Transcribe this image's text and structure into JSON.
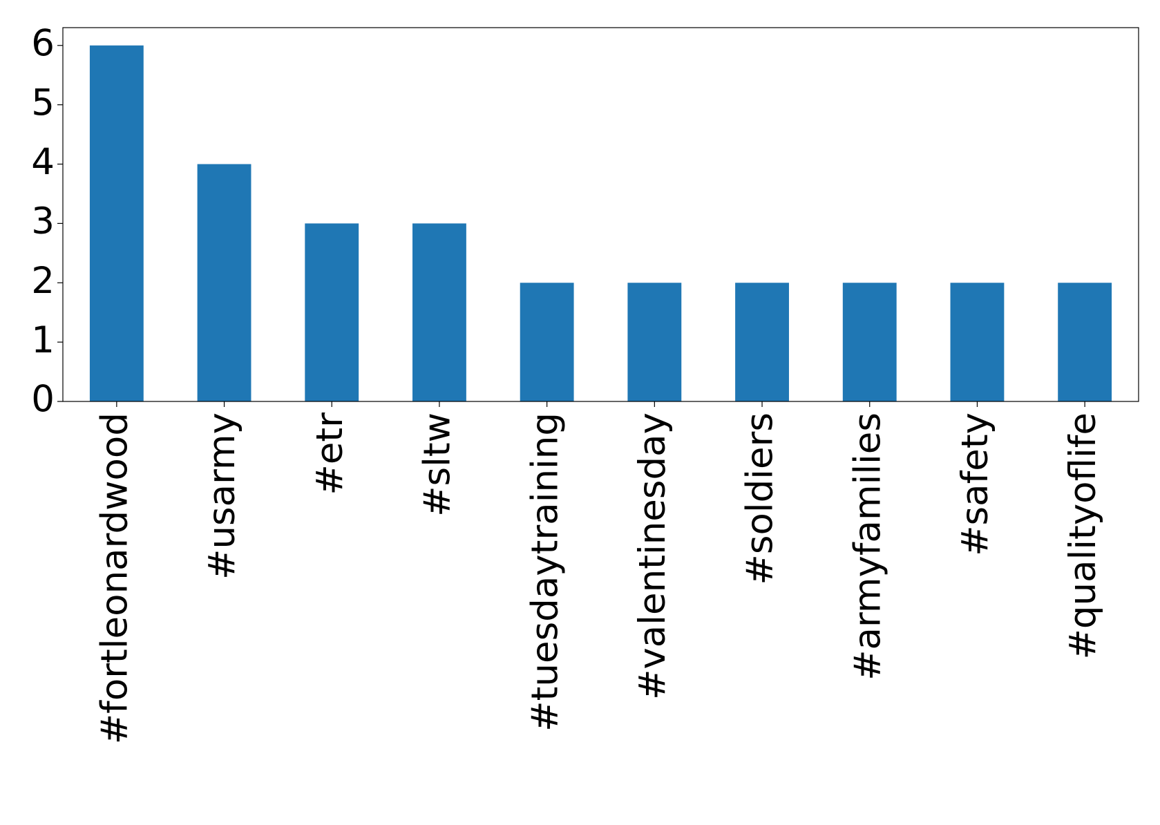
{
  "chart_data": {
    "type": "bar",
    "categories": [
      "#fortleonardwood",
      "#usarmy",
      "#etr",
      "#sltw",
      "#tuesdaytraining",
      "#valentinesday",
      "#soldiers",
      "#armyfamilies",
      "#safety",
      "#qualityoflife"
    ],
    "values": [
      6,
      4,
      3,
      3,
      2,
      2,
      2,
      2,
      2,
      2
    ],
    "color": "#1f77b4",
    "ylim": [
      0,
      6.3
    ],
    "yticks": [
      0,
      1,
      2,
      3,
      4,
      5,
      6
    ],
    "grid": false
  }
}
